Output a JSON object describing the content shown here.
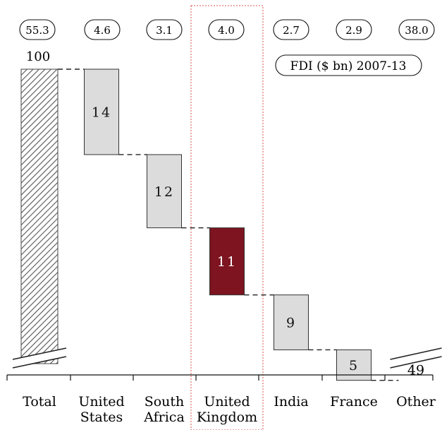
{
  "chart_data": {
    "type": "waterfall",
    "title": "",
    "legend_note": "FDI ($ bn) 2007-13",
    "total": {
      "category": "Total",
      "value": 100,
      "label": "100",
      "fdi": "55.3"
    },
    "steps": [
      {
        "category": "United States",
        "value": 14,
        "label": "14",
        "fdi": "4.6",
        "highlight": false
      },
      {
        "category": "South Africa",
        "value": 12,
        "label": "12",
        "fdi": "3.1",
        "highlight": false
      },
      {
        "category": "United Kingdom",
        "value": 11,
        "label": "11",
        "fdi": "4.0",
        "highlight": true
      },
      {
        "category": "India",
        "value": 9,
        "label": "9",
        "fdi": "2.7",
        "highlight": false
      },
      {
        "category": "France",
        "value": 5,
        "label": "5",
        "fdi": "2.9",
        "highlight": false
      }
    ],
    "remainder": {
      "category": "Other",
      "value": 49,
      "label": "49",
      "fdi": "38.0"
    },
    "xlabels": [
      [
        "Total"
      ],
      [
        "United",
        "States"
      ],
      [
        "South",
        "Africa"
      ],
      [
        "United",
        "Kingdom"
      ],
      [
        "India"
      ],
      [
        "France"
      ],
      [
        "Other"
      ]
    ],
    "axis_broken": true,
    "grid": false
  },
  "colors": {
    "step_fill": "#dcdcdc",
    "highlight_fill": "#7d1420",
    "other_fill": "#000000",
    "highlight_frame": "#d9534f"
  }
}
